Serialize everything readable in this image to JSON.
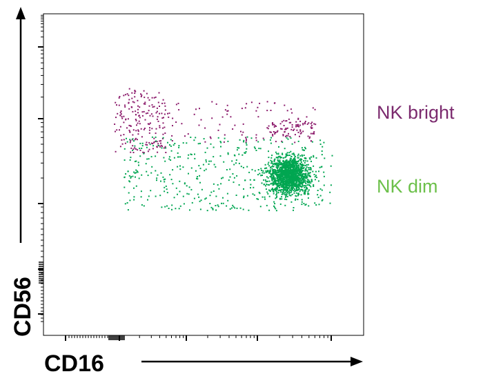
{
  "chart_data": {
    "type": "scatter",
    "title": "",
    "xlabel": "CD16",
    "ylabel": "CD56",
    "x_scale": "log",
    "y_scale": "log",
    "grid": false,
    "legend_placement": "right",
    "populations": [
      {
        "name": "NK bright",
        "color": "#8b1a6b",
        "label_color": "#7b2a6e",
        "clusters": [
          {
            "x_range": [
              0.22,
              0.38
            ],
            "y_range": [
              0.57,
              0.77
            ],
            "count": 180
          },
          {
            "x_range": [
              0.22,
              0.85
            ],
            "y_range": [
              0.6,
              0.73
            ],
            "count": 120
          },
          {
            "x_range": [
              0.7,
              0.85
            ],
            "y_range": [
              0.62,
              0.67
            ],
            "count": 70
          }
        ]
      },
      {
        "name": "NK dim",
        "color": "#00a651",
        "label_color": "#6cc04a",
        "clusters": [
          {
            "x_range": [
              0.65,
              0.88
            ],
            "y_range": [
              0.39,
              0.61
            ],
            "count": 1500
          },
          {
            "x_range": [
              0.25,
              0.9
            ],
            "y_range": [
              0.39,
              0.62
            ],
            "count": 450
          }
        ]
      }
    ]
  }
}
